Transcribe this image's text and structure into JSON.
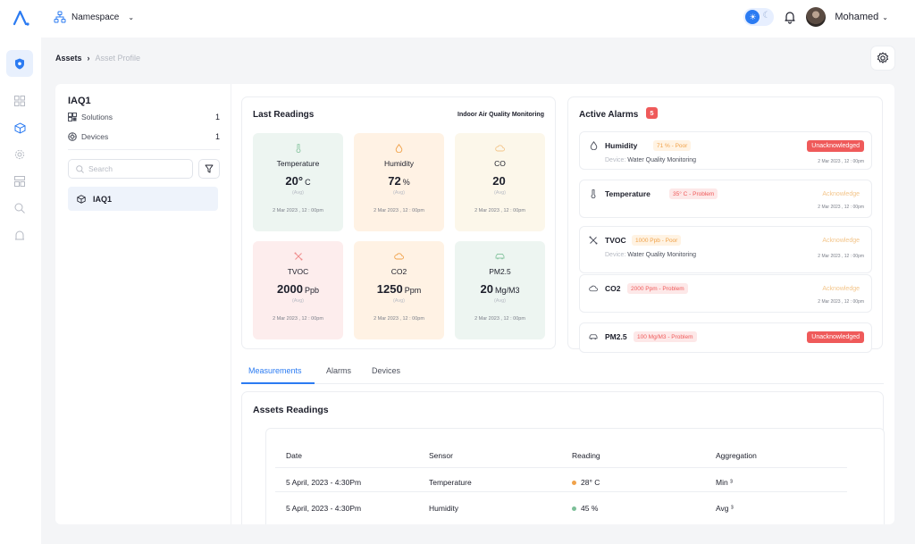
{
  "topbar": {
    "namespace_label": "Namespace",
    "user_name": "Mohamed"
  },
  "breadcrumb": {
    "root": "Assets",
    "separator": "›",
    "current": "Asset Profile"
  },
  "left_panel": {
    "title": "IAQ1",
    "rows": [
      {
        "label": "Solutions",
        "count": "1"
      },
      {
        "label": "Devices",
        "count": "1"
      }
    ],
    "search_placeholder": "Search",
    "assets": [
      {
        "label": "IAQ1"
      }
    ]
  },
  "last_readings": {
    "title": "Last Readings",
    "subtitle": "Indoor Air Quality Monitoring",
    "tiles": [
      {
        "name": "Temperature",
        "value": "20°",
        "unit": "C",
        "agg": "(Avg)",
        "date": "2 Mar 2023 , 12 : 00pm",
        "icon": "thermometer-icon",
        "bg": "#edf5f1",
        "icon_color": "#8cc7a4"
      },
      {
        "name": "Humidity",
        "value": "72",
        "unit": "%",
        "agg": "(Avg)",
        "date": "2 Mar 2023 , 12 : 00pm",
        "icon": "droplet-icon",
        "bg": "#fff2e4",
        "icon_color": "#f0a24a"
      },
      {
        "name": "CO",
        "value": "20",
        "unit": "",
        "agg": "(Avg)",
        "date": "2 Mar 2023 , 12 : 00pm",
        "icon": "cloud-icon",
        "bg": "#fcf7ea",
        "icon_color": "#f3c58a"
      },
      {
        "name": "TVOC",
        "value": "2000",
        "unit": "Ppb",
        "agg": "(Avg)",
        "date": "2 Mar 2023 , 12 : 00pm",
        "icon": "molecule-icon",
        "bg": "#fdeded",
        "icon_color": "#ef8a8a"
      },
      {
        "name": "CO2",
        "value": "1250",
        "unit": "Ppm",
        "agg": "(Avg)",
        "date": "2 Mar 2023 , 12 : 00pm",
        "icon": "cloud-icon",
        "bg": "#fff2e4",
        "icon_color": "#f0a24a"
      },
      {
        "name": "PM2.5",
        "value": "20",
        "unit": "Mg/M3",
        "agg": "(Avg)",
        "date": "2 Mar 2023 , 12 : 00pm",
        "icon": "car-icon",
        "bg": "#edf5f1",
        "icon_color": "#8cc7a4"
      }
    ]
  },
  "active_alarms": {
    "title": "Active Alarms",
    "count": "5",
    "device_prefix": "Device:",
    "items": [
      {
        "name": "Humidity",
        "tag": "71 % - Poor",
        "tag_kind": "warn",
        "device": "Water Quality Monitoring",
        "status": "Unacknowledged",
        "status_kind": "unack",
        "time": "2 Mar 2023 , 12 : 00pm",
        "icon": "droplet-icon"
      },
      {
        "name": "Temperature",
        "tag": "35° C - Problem",
        "tag_kind": "bad",
        "device": "",
        "status": "Acknowledge",
        "status_kind": "ack",
        "time": "2 Mar 2023 , 12 : 00pm",
        "icon": "thermometer-icon"
      },
      {
        "name": "TVOC",
        "tag": "1000 Ppb - Poor",
        "tag_kind": "warn",
        "device": "Water Quality Monitoring",
        "status": "Acknowledge",
        "status_kind": "ack",
        "time": "2 Mar 2023 , 12 : 00pm",
        "icon": "molecule-icon"
      },
      {
        "name": "CO2",
        "tag": "2000 Ppm - Problem",
        "tag_kind": "bad",
        "device": "",
        "status": "Acknowledge",
        "status_kind": "ack",
        "time": "2 Mar 2023 , 12 : 00pm",
        "icon": "cloud-icon"
      },
      {
        "name": "PM2.5",
        "tag": "100 Mg/M3 - Problem",
        "tag_kind": "bad",
        "device": "",
        "status": "Unacknowledged",
        "status_kind": "unack",
        "time": "",
        "icon": "car-icon"
      }
    ]
  },
  "tabs": [
    "Measurements",
    "Alarms",
    "Devices"
  ],
  "assets_readings": {
    "title": "Assets Readings",
    "columns": [
      "Date",
      "Sensor",
      "Reading",
      "Aggregation"
    ],
    "rows": [
      {
        "date": "5 April, 2023 - 4:30Pm",
        "sensor": "Temperature",
        "reading": "28° C",
        "dot": "#f0a24a",
        "aggregation": "Min ³"
      },
      {
        "date": "5 April, 2023 - 4:30Pm",
        "sensor": "Humidity",
        "reading": "45 %",
        "dot": "#7cbf98",
        "aggregation": "Avg ³"
      }
    ]
  },
  "colors": {
    "accent": "#2b7bf2",
    "danger": "#ef5a5a",
    "warning": "#f0a24a"
  }
}
